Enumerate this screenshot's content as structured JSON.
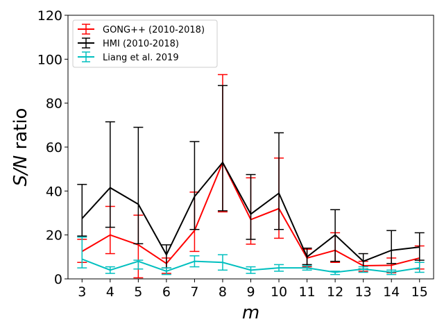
{
  "chart_data": {
    "type": "line",
    "xlabel": "m",
    "ylabel_italic": "S/N",
    "ylabel_rest": " ratio",
    "x": [
      3,
      4,
      5,
      6,
      7,
      8,
      9,
      10,
      11,
      12,
      13,
      14,
      15
    ],
    "x_ticks": [
      "3",
      "4",
      "5",
      "6",
      "7",
      "8",
      "9",
      "10",
      "11",
      "12",
      "13",
      "14",
      "15"
    ],
    "xlim": [
      2.5,
      15.5
    ],
    "ylim": [
      0,
      120
    ],
    "y_ticks": [
      "0",
      "20",
      "40",
      "60",
      "80",
      "100",
      "120"
    ],
    "grid": false,
    "legend_position": "top-left",
    "series": [
      {
        "name": "GONG++ (2010-2018)",
        "color": "#ff0000",
        "values": [
          12.5,
          20.0,
          15.5,
          7.0,
          22.0,
          53.0,
          27.0,
          32.0,
          9.5,
          13.0,
          6.0,
          6.2,
          9.5
        ],
        "err_low": [
          7.5,
          11.5,
          0.5,
          2.5,
          12.5,
          30.5,
          15.8,
          18.5,
          5.5,
          7.5,
          3.5,
          2.8,
          4.5
        ],
        "err_high": [
          18.0,
          33.0,
          29.0,
          9.5,
          39.5,
          93.0,
          46.0,
          55.0,
          13.5,
          21.0,
          8.0,
          9.5,
          15.0
        ]
      },
      {
        "name": "HMI (2010-2018)",
        "color": "#000000",
        "values": [
          27.5,
          41.5,
          34.0,
          11.0,
          37.5,
          53.0,
          29.5,
          39.0,
          10.0,
          20.0,
          8.0,
          13.0,
          14.5
        ],
        "err_low": [
          19.5,
          23.5,
          16.0,
          5.0,
          22.5,
          31.0,
          18.0,
          22.5,
          6.5,
          8.0,
          4.5,
          7.0,
          8.5
        ],
        "err_high": [
          43.0,
          71.5,
          69.0,
          15.5,
          62.5,
          88.0,
          47.5,
          66.5,
          14.0,
          31.5,
          11.5,
          22.0,
          21.0
        ]
      },
      {
        "name": "Liang et al. 2019",
        "color": "#00bfbf",
        "values": [
          9.0,
          4.0,
          8.0,
          3.5,
          8.0,
          7.5,
          4.0,
          5.0,
          5.0,
          3.0,
          4.5,
          3.0,
          5.0
        ],
        "err_low": [
          5.0,
          2.5,
          4.5,
          2.0,
          5.5,
          4.0,
          2.5,
          3.5,
          4.0,
          2.0,
          3.0,
          2.0,
          3.0
        ],
        "err_high": [
          19.0,
          5.5,
          8.5,
          5.0,
          10.5,
          11.0,
          5.5,
          6.5,
          6.0,
          3.5,
          5.5,
          4.0,
          7.5
        ]
      }
    ]
  }
}
